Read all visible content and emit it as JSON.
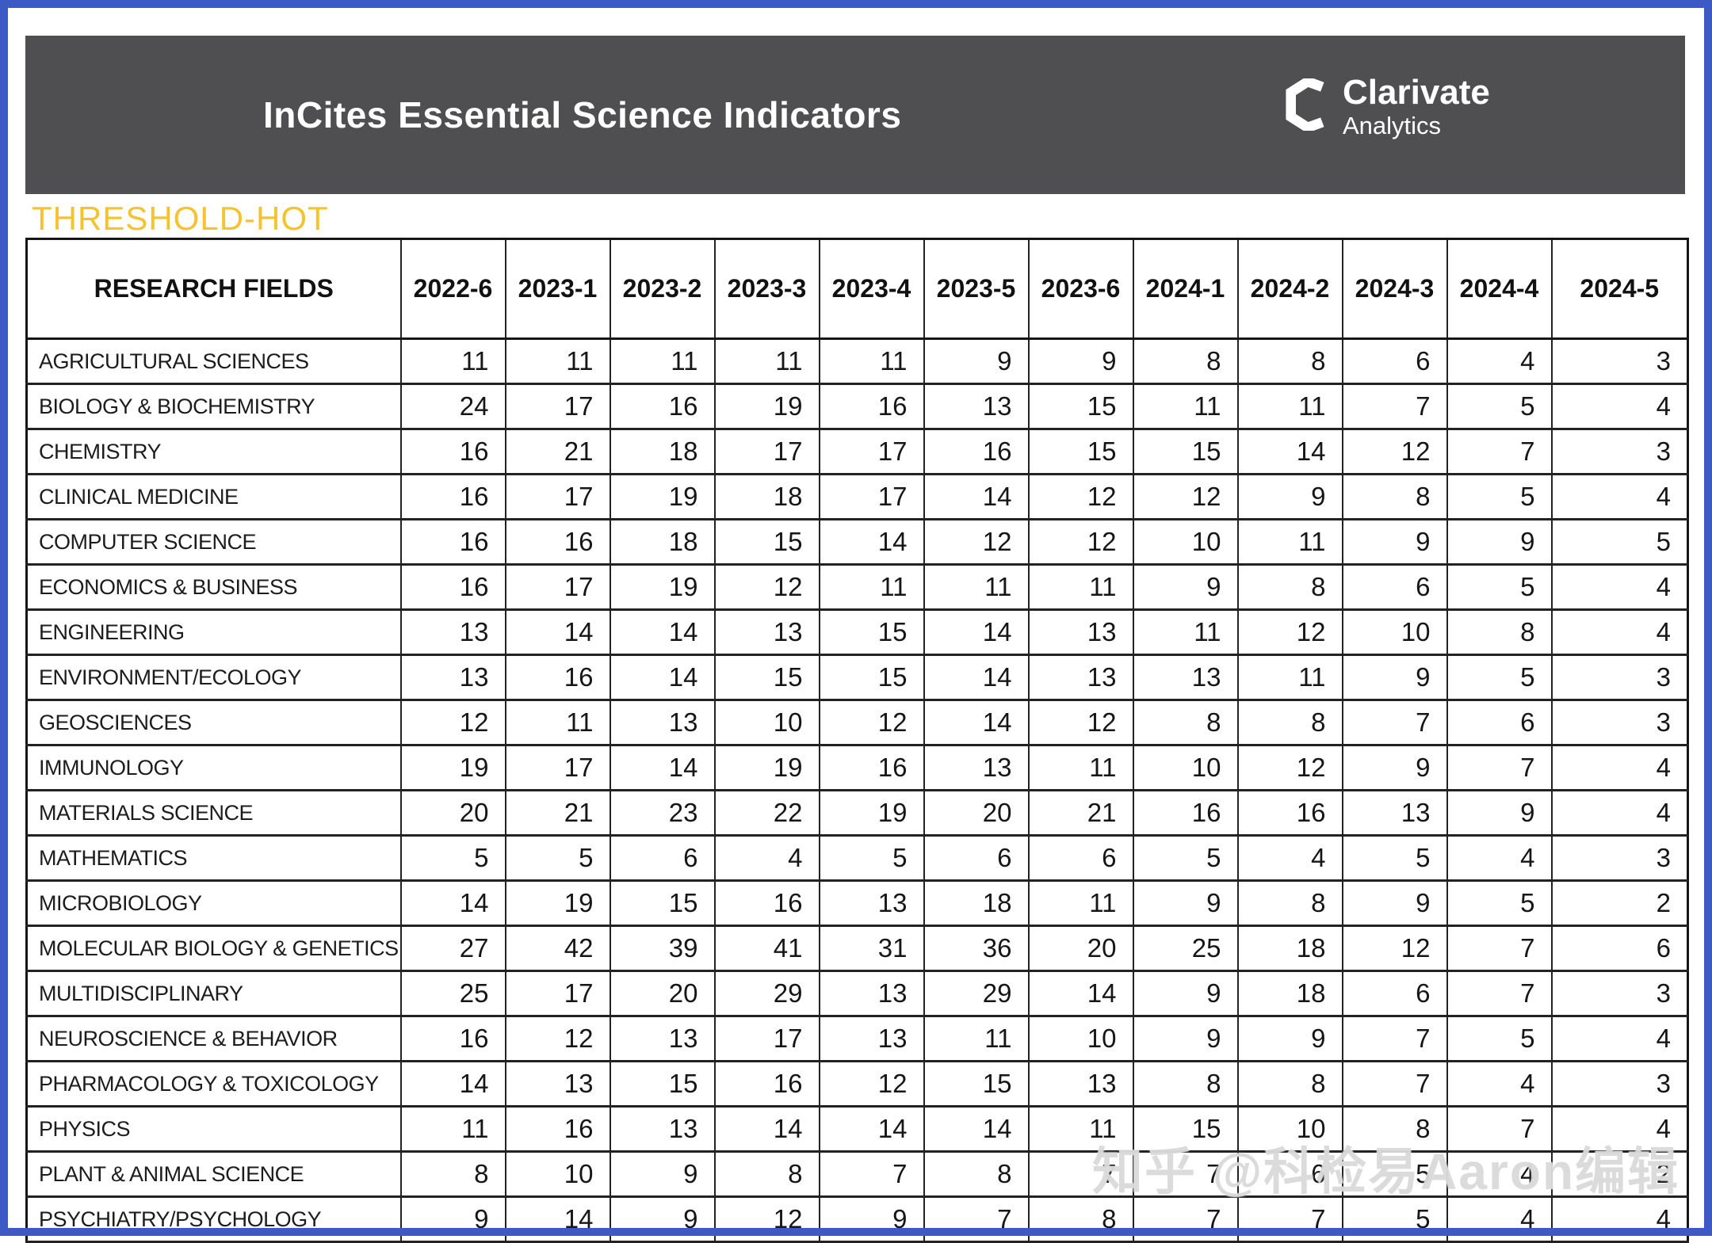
{
  "banner": {
    "title": "InCites Essential Science Indicators",
    "logo": {
      "name": "Clarivate",
      "sub": "Analytics"
    }
  },
  "section_label": "THRESHOLD-HOT",
  "table": {
    "field_header": "RESEARCH FIELDS",
    "columns": [
      "2022-6",
      "2023-1",
      "2023-2",
      "2023-3",
      "2023-4",
      "2023-5",
      "2023-6",
      "2024-1",
      "2024-2",
      "2024-3",
      "2024-4",
      "2024-5"
    ],
    "rows": [
      {
        "field": "AGRICULTURAL SCIENCES",
        "values": [
          11,
          11,
          11,
          11,
          11,
          9,
          9,
          8,
          8,
          6,
          4,
          3
        ]
      },
      {
        "field": "BIOLOGY & BIOCHEMISTRY",
        "values": [
          24,
          17,
          16,
          19,
          16,
          13,
          15,
          11,
          11,
          7,
          5,
          4
        ]
      },
      {
        "field": "CHEMISTRY",
        "values": [
          16,
          21,
          18,
          17,
          17,
          16,
          15,
          15,
          14,
          12,
          7,
          3
        ]
      },
      {
        "field": "CLINICAL MEDICINE",
        "values": [
          16,
          17,
          19,
          18,
          17,
          14,
          12,
          12,
          9,
          8,
          5,
          4
        ]
      },
      {
        "field": "COMPUTER SCIENCE",
        "values": [
          16,
          16,
          18,
          15,
          14,
          12,
          12,
          10,
          11,
          9,
          9,
          5
        ]
      },
      {
        "field": "ECONOMICS & BUSINESS",
        "values": [
          16,
          17,
          19,
          12,
          11,
          11,
          11,
          9,
          8,
          6,
          5,
          4
        ]
      },
      {
        "field": "ENGINEERING",
        "values": [
          13,
          14,
          14,
          13,
          15,
          14,
          13,
          11,
          12,
          10,
          8,
          4
        ]
      },
      {
        "field": "ENVIRONMENT/ECOLOGY",
        "values": [
          13,
          16,
          14,
          15,
          15,
          14,
          13,
          13,
          11,
          9,
          5,
          3
        ]
      },
      {
        "field": "GEOSCIENCES",
        "values": [
          12,
          11,
          13,
          10,
          12,
          14,
          12,
          8,
          8,
          7,
          6,
          3
        ]
      },
      {
        "field": "IMMUNOLOGY",
        "values": [
          19,
          17,
          14,
          19,
          16,
          13,
          11,
          10,
          12,
          9,
          7,
          4
        ]
      },
      {
        "field": "MATERIALS SCIENCE",
        "values": [
          20,
          21,
          23,
          22,
          19,
          20,
          21,
          16,
          16,
          13,
          9,
          4
        ]
      },
      {
        "field": "MATHEMATICS",
        "values": [
          5,
          5,
          6,
          4,
          5,
          6,
          6,
          5,
          4,
          5,
          4,
          3
        ]
      },
      {
        "field": "MICROBIOLOGY",
        "values": [
          14,
          19,
          15,
          16,
          13,
          18,
          11,
          9,
          8,
          9,
          5,
          2
        ]
      },
      {
        "field": "MOLECULAR BIOLOGY & GENETICS",
        "values": [
          27,
          42,
          39,
          41,
          31,
          36,
          20,
          25,
          18,
          12,
          7,
          6
        ]
      },
      {
        "field": "MULTIDISCIPLINARY",
        "values": [
          25,
          17,
          20,
          29,
          13,
          29,
          14,
          9,
          18,
          6,
          7,
          3
        ]
      },
      {
        "field": "NEUROSCIENCE & BEHAVIOR",
        "values": [
          16,
          12,
          13,
          17,
          13,
          11,
          10,
          9,
          9,
          7,
          5,
          4
        ]
      },
      {
        "field": "PHARMACOLOGY & TOXICOLOGY",
        "values": [
          14,
          13,
          15,
          16,
          12,
          15,
          13,
          8,
          8,
          7,
          4,
          3
        ]
      },
      {
        "field": "PHYSICS",
        "values": [
          11,
          16,
          13,
          14,
          14,
          14,
          11,
          15,
          10,
          8,
          7,
          4
        ]
      },
      {
        "field": "PLANT & ANIMAL SCIENCE",
        "values": [
          8,
          10,
          9,
          8,
          7,
          8,
          7,
          7,
          6,
          5,
          4,
          2
        ]
      },
      {
        "field": "PSYCHIATRY/PSYCHOLOGY",
        "values": [
          9,
          14,
          9,
          12,
          9,
          7,
          8,
          7,
          7,
          5,
          4,
          4
        ]
      }
    ]
  },
  "watermark": "知乎 @科检易Aaron编辑",
  "colors": {
    "frame_blue": "#3C59C6",
    "banner_gray": "#4F4F51",
    "label_yellow": "#F5C32B",
    "table_border": "#222222",
    "text_white": "#ffffff"
  }
}
